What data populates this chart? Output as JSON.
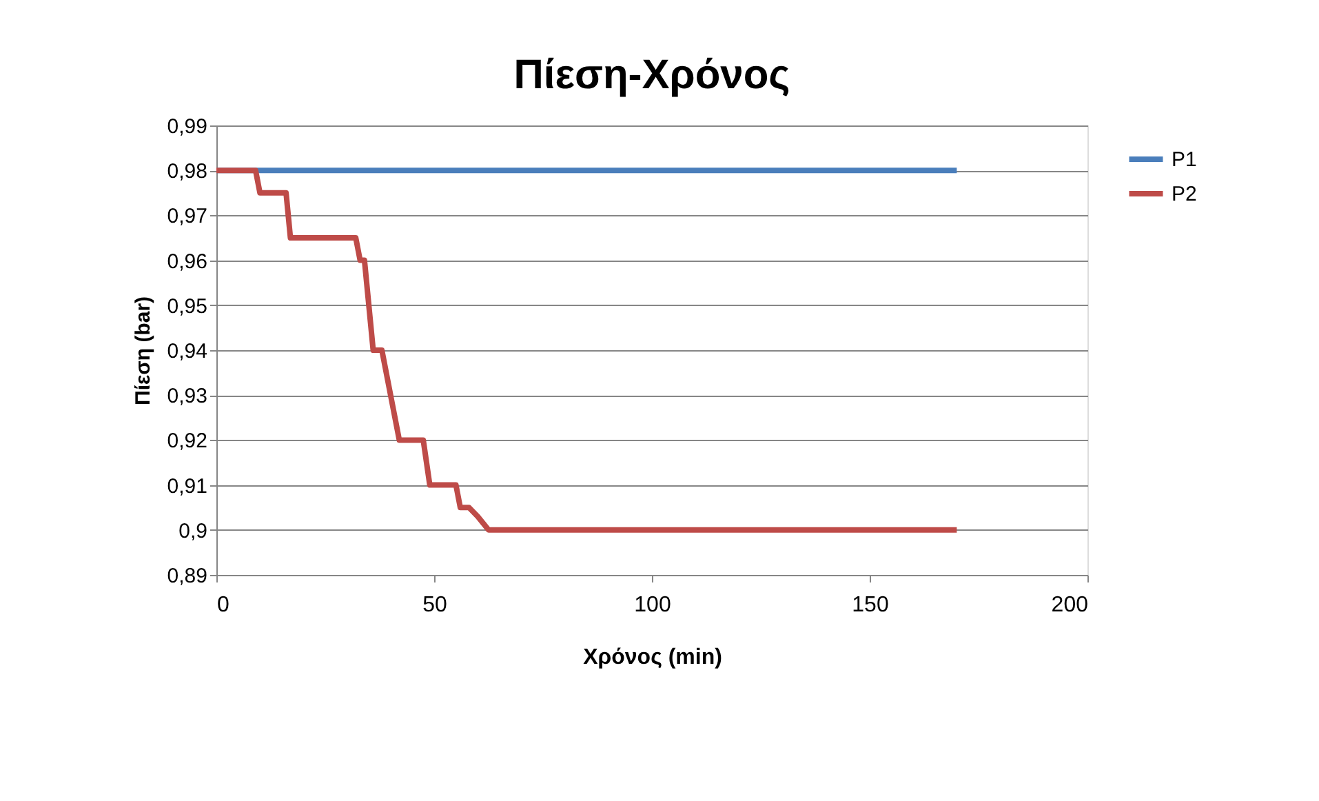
{
  "chart_data": {
    "type": "line",
    "title": "Πίεση-Χρόνος",
    "xlabel": "Χρόνος (min)",
    "ylabel": "Πίεση (bar)",
    "xlim": [
      0,
      200
    ],
    "xticks": [
      0,
      50,
      100,
      150,
      200
    ],
    "ylim": [
      0.89,
      0.99
    ],
    "yticks": [
      {
        "value": 0.89,
        "label": "0,89"
      },
      {
        "value": 0.9,
        "label": "0,9"
      },
      {
        "value": 0.91,
        "label": "0,91"
      },
      {
        "value": 0.92,
        "label": "0,92"
      },
      {
        "value": 0.93,
        "label": "0,93"
      },
      {
        "value": 0.94,
        "label": "0,94"
      },
      {
        "value": 0.95,
        "label": "0,95"
      },
      {
        "value": 0.96,
        "label": "0,96"
      },
      {
        "value": 0.97,
        "label": "0,97"
      },
      {
        "value": 0.98,
        "label": "0,98"
      },
      {
        "value": 0.99,
        "label": "0,99"
      }
    ],
    "grid": "y",
    "legend": "right",
    "marker": "none",
    "line_style": "solid",
    "series": [
      {
        "name": "P1",
        "color": "#4a7ebb",
        "x": [
          0,
          170
        ],
        "values": [
          0.98,
          0.98
        ]
      },
      {
        "name": "P2",
        "color": "#be4b48",
        "x": [
          0,
          9,
          10,
          16,
          17,
          32,
          33,
          34,
          36,
          38,
          42,
          47.5,
          49,
          55,
          56,
          58,
          60,
          62.5,
          170
        ],
        "values": [
          0.98,
          0.98,
          0.975,
          0.975,
          0.965,
          0.965,
          0.96,
          0.96,
          0.94,
          0.94,
          0.92,
          0.92,
          0.91,
          0.91,
          0.905,
          0.905,
          0.903,
          0.9,
          0.9
        ]
      }
    ]
  }
}
